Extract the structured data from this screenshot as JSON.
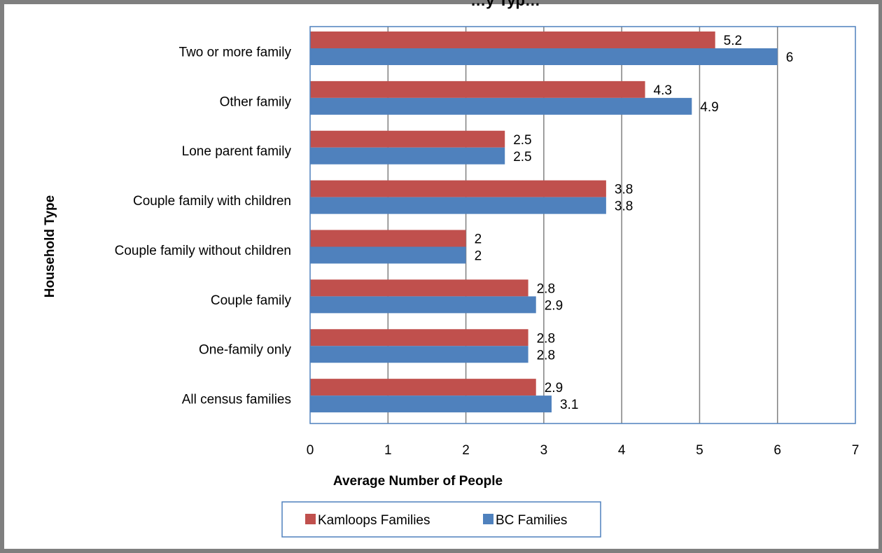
{
  "chart_data": {
    "type": "bar",
    "orientation": "horizontal",
    "title": "…y Typ…",
    "xlabel": "Average Number of People",
    "ylabel": "Household Type",
    "xlim": [
      0,
      7
    ],
    "xticks": [
      0,
      1,
      2,
      3,
      4,
      5,
      6,
      7
    ],
    "grid": "vertical major gridlines",
    "legend_position": "bottom",
    "categories": [
      "Two or more family",
      "Other family ",
      "Lone parent family ",
      "Couple family with children",
      "Couple family without children",
      "Couple family ",
      "One-family only ",
      "All census families"
    ],
    "series": [
      {
        "name": "Kamloops Families",
        "color": "#c0504d",
        "values": [
          5.2,
          4.3,
          2.5,
          3.8,
          2,
          2.8,
          2.8,
          2.9
        ]
      },
      {
        "name": "BC Families",
        "color": "#4f81bd",
        "values": [
          6,
          4.9,
          2.5,
          3.8,
          2,
          2.9,
          2.8,
          3.1
        ]
      }
    ]
  }
}
